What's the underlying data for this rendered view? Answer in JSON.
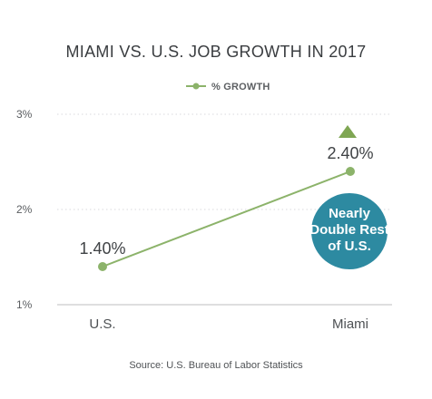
{
  "chart_data": {
    "type": "line",
    "title": "MIAMI VS. U.S. JOB GROWTH IN 2017",
    "legend": {
      "label": "% GROWTH",
      "placement": "top-center"
    },
    "categories": [
      "U.S.",
      "Miami"
    ],
    "series": [
      {
        "name": "% GROWTH",
        "values": [
          1.4,
          2.4
        ],
        "data_labels": [
          "1.40%",
          "2.40%"
        ],
        "color": "#8cb36a"
      }
    ],
    "yaxis": {
      "ticks": [
        1,
        2,
        3
      ],
      "tick_labels": [
        "1%",
        "2%",
        "3%"
      ],
      "ylim": [
        1,
        3
      ]
    },
    "grid": true,
    "annotation": {
      "text_lines": [
        "Nearly",
        "Double Rest",
        "of U.S."
      ],
      "color": "#2d8aa1",
      "indicator": "up-triangle",
      "indicator_color": "#7fa653"
    },
    "source": "Source: U.S. Bureau of Labor Statistics"
  }
}
